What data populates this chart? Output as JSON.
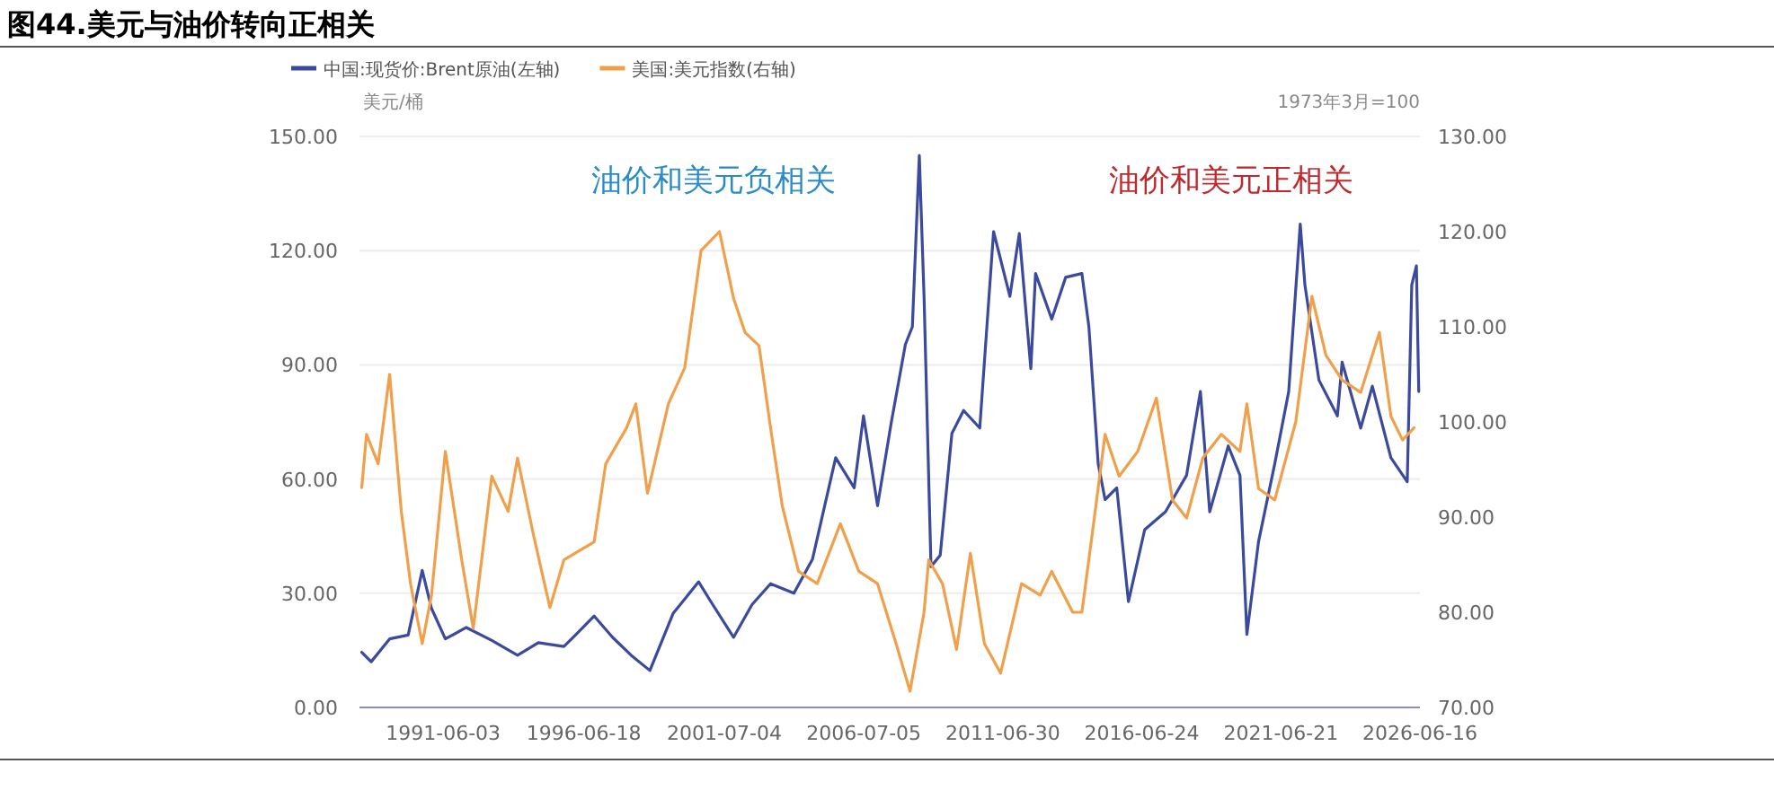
{
  "chart_data": {
    "type": "line",
    "title": "图44.美元与油价转向正相关",
    "ylabel": "美元/桶",
    "y2label": "1973年3月=100",
    "annotations": [
      "油价和美元负相关",
      "油价和美元正相关"
    ],
    "xlim": [
      "1988-06-01",
      "2026-06-16"
    ],
    "xticks": [
      "1991-06-03",
      "1996-06-18",
      "2001-07-04",
      "2006-07-05",
      "2011-06-30",
      "2016-06-24",
      "2021-06-21",
      "2026-06-16"
    ],
    "ylim": [
      0,
      150
    ],
    "yticks": [
      {
        "value": 0,
        "label": "0.00"
      },
      {
        "value": 30,
        "label": "30.00"
      },
      {
        "value": 60,
        "label": "60.00"
      },
      {
        "value": 90,
        "label": "90.00"
      },
      {
        "value": 120,
        "label": "120.00"
      },
      {
        "value": 150,
        "label": "150.00"
      }
    ],
    "y2lim": [
      70,
      130
    ],
    "y2ticks": [
      {
        "value": 70,
        "label": "70.00"
      },
      {
        "value": 80,
        "label": "80.00"
      },
      {
        "value": 90,
        "label": "90.00"
      },
      {
        "value": 100,
        "label": "100.00"
      },
      {
        "value": 110,
        "label": "110.00"
      },
      {
        "value": 120,
        "label": "120.00"
      },
      {
        "value": 130,
        "label": "130.00"
      }
    ],
    "grid": "y",
    "legend": "top left",
    "marker": "none",
    "line_style": "solid",
    "series": [
      {
        "name": "中国:现货价:Brent原油(左轴)",
        "color": "#3b4a9c",
        "x": [
          "1988-07",
          "1988-11",
          "1989-07",
          "1990-03",
          "1990-09",
          "1991-01",
          "1991-07",
          "1992-04",
          "1993-03",
          "1994-02",
          "1994-11",
          "1995-10",
          "1996-03",
          "1996-11",
          "1997-07",
          "1998-03",
          "1998-11",
          "1999-09",
          "2000-08",
          "2001-01",
          "2001-11",
          "2002-07",
          "2003-03",
          "2004-01",
          "2004-09",
          "2005-07",
          "2006-03",
          "2006-07",
          "2007-01",
          "2007-07",
          "2008-01",
          "2008-04",
          "2008-07",
          "2008-09",
          "2008-12",
          "2009-04",
          "2009-09",
          "2010-02",
          "2010-09",
          "2011-03",
          "2011-10",
          "2012-02",
          "2012-07",
          "2012-09",
          "2013-04",
          "2013-10",
          "2014-05",
          "2014-08",
          "2014-12",
          "2015-03",
          "2015-08",
          "2016-01",
          "2016-08",
          "2017-05",
          "2018-02",
          "2018-08",
          "2018-12",
          "2019-08",
          "2020-01",
          "2020-04",
          "2020-09",
          "2021-04",
          "2021-10",
          "2022-03",
          "2022-05",
          "2022-11",
          "2023-07",
          "2023-09",
          "2024-05",
          "2024-10",
          "2025-06",
          "2026-01",
          "2026-03",
          "2026-05",
          "2026-06"
        ],
        "values": [
          14.5,
          12,
          18,
          19,
          36,
          26,
          18,
          21,
          17.6,
          13.7,
          17,
          16,
          19,
          24,
          18.4,
          13.7,
          9.7,
          24.7,
          33,
          28,
          18.4,
          27,
          32.5,
          30,
          39,
          65.6,
          57.7,
          76.6,
          53,
          75,
          95.4,
          100,
          145,
          108,
          37,
          40,
          72,
          78,
          73.4,
          125,
          108,
          124.5,
          89,
          114,
          102,
          113,
          114,
          100,
          64,
          54.6,
          57.7,
          27.8,
          46.7,
          51.4,
          61,
          83,
          51.4,
          68.7,
          61,
          19.2,
          43.6,
          64,
          83,
          127,
          111,
          86,
          76.6,
          90.7,
          73.4,
          84.4,
          65.6,
          59.3,
          111,
          116,
          83
        ]
      },
      {
        "name": "美国:美元指数(右轴)",
        "color": "#f0a04b",
        "axis": "y2",
        "x": [
          "1988-07",
          "1988-09",
          "1989-02",
          "1989-07",
          "1989-12",
          "1990-04",
          "1990-09",
          "1991-01",
          "1991-07",
          "1992-02",
          "1992-07",
          "1993-03",
          "1993-10",
          "1994-02",
          "1994-09",
          "1995-04",
          "1995-10",
          "1996-11",
          "1997-04",
          "1998-01",
          "1998-05",
          "1998-10",
          "1999-07",
          "2000-02",
          "2000-09",
          "2001-05",
          "2001-11",
          "2002-04",
          "2002-10",
          "2003-03",
          "2003-08",
          "2004-03",
          "2004-11",
          "2005-09",
          "2006-05",
          "2007-01",
          "2007-09",
          "2008-03",
          "2008-09",
          "2008-11",
          "2009-05",
          "2009-11",
          "2010-05",
          "2010-11",
          "2011-06",
          "2012-03",
          "2012-11",
          "2013-04",
          "2014-01",
          "2014-05",
          "2014-10",
          "2015-03",
          "2015-09",
          "2016-05",
          "2017-01",
          "2017-08",
          "2018-02",
          "2018-09",
          "2019-05",
          "2020-01",
          "2020-04",
          "2020-09",
          "2021-04",
          "2022-01",
          "2022-08",
          "2023-02",
          "2023-09",
          "2024-05",
          "2025-01",
          "2025-06",
          "2025-11",
          "2026-04"
        ],
        "values": [
          93.1,
          98.7,
          95.6,
          105,
          90.6,
          83,
          76.7,
          81.8,
          96.9,
          85.5,
          78.3,
          94.3,
          90.6,
          96.2,
          88,
          80.5,
          85.5,
          87.4,
          95.6,
          99.4,
          101.9,
          92.5,
          101.9,
          105.7,
          118,
          120,
          113,
          109.4,
          108,
          99.4,
          91.2,
          84.3,
          83,
          89.3,
          84.3,
          83,
          76.7,
          71.7,
          80,
          85.5,
          83,
          76.1,
          86.2,
          76.7,
          73.6,
          83,
          81.8,
          84.3,
          80,
          80,
          89.3,
          98.7,
          94.3,
          96.9,
          102.5,
          91.8,
          89.9,
          96.2,
          98.7,
          96.9,
          101.9,
          93,
          91.8,
          100,
          113.2,
          107,
          104.4,
          103.1,
          109.4,
          100.6,
          98.1,
          99.4
        ]
      }
    ]
  }
}
